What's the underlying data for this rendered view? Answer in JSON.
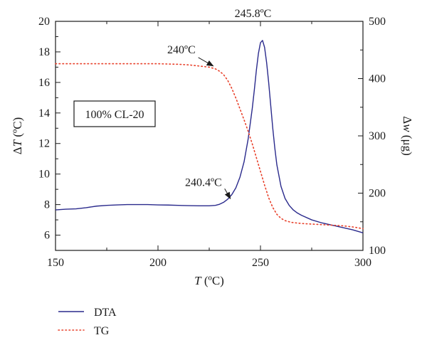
{
  "chart_data": {
    "type": "line",
    "xlabel": {
      "italic": "T",
      "rest": " (ºC)"
    },
    "ylabel_left": {
      "prefix": "Δ",
      "italic": "T",
      "rest": " (ºC)"
    },
    "ylabel_right": {
      "prefix": "Δ",
      "italic": "w",
      "rest": " (μg)"
    },
    "xlim": [
      150,
      300
    ],
    "ylim_left": [
      5,
      20
    ],
    "ylim_right": [
      100,
      500
    ],
    "xticks": [
      150,
      200,
      250,
      300
    ],
    "yticks_left": [
      6,
      8,
      10,
      12,
      14,
      16,
      18,
      20
    ],
    "yticks_right": [
      100,
      200,
      300,
      400,
      500
    ],
    "grid": false,
    "legend_position": "bottom-left, below plot",
    "series": [
      {
        "name": "DTA",
        "axis": "left",
        "color": "#2a2a8c",
        "style": "solid",
        "x": [
          150,
          155,
          160,
          165,
          170,
          175,
          180,
          185,
          190,
          195,
          200,
          205,
          210,
          215,
          220,
          225,
          228,
          230,
          232,
          234,
          236,
          238,
          240,
          242,
          244,
          246,
          247,
          248,
          249,
          250,
          251,
          252,
          253,
          254,
          255,
          256,
          257,
          258,
          260,
          262,
          264,
          266,
          268,
          270,
          275,
          280,
          285,
          290,
          295,
          300
        ],
        "values": [
          7.65,
          7.7,
          7.72,
          7.8,
          7.9,
          7.95,
          7.98,
          8.0,
          8.0,
          8.0,
          7.98,
          7.97,
          7.95,
          7.93,
          7.92,
          7.92,
          7.95,
          8.02,
          8.15,
          8.35,
          8.65,
          9.1,
          9.8,
          10.8,
          12.3,
          14.3,
          15.5,
          16.8,
          17.9,
          18.6,
          18.75,
          18.3,
          17.3,
          16.0,
          14.5,
          13.0,
          11.7,
          10.6,
          9.2,
          8.4,
          7.95,
          7.65,
          7.45,
          7.3,
          7.0,
          6.8,
          6.65,
          6.5,
          6.35,
          6.15
        ]
      },
      {
        "name": "TG",
        "axis": "right",
        "color": "#e8402a",
        "style": "dotted",
        "x": [
          150,
          160,
          170,
          180,
          190,
          200,
          210,
          215,
          220,
          225,
          228,
          230,
          232,
          234,
          236,
          238,
          240,
          242,
          244,
          246,
          248,
          250,
          252,
          254,
          256,
          258,
          260,
          262,
          265,
          270,
          275,
          280,
          285,
          290,
          295,
          300
        ],
        "values": [
          426,
          426,
          426,
          426,
          426,
          426,
          425,
          424,
          422,
          420,
          417,
          413,
          407,
          397,
          383,
          366,
          347,
          328,
          308,
          286,
          262,
          238,
          214,
          192,
          175,
          163,
          156,
          152,
          149,
          147,
          146,
          145,
          144,
          143,
          141,
          138
        ]
      }
    ],
    "annotations": [
      {
        "text": "245.8ºC",
        "x": 250.5,
        "y": 18.75,
        "axis": "left",
        "arrow": false
      },
      {
        "text": "240ºC",
        "x": 228,
        "y": 417,
        "axis": "right",
        "arrow": true
      },
      {
        "text": "240.4ºC",
        "x": 236,
        "y": 8.2,
        "axis": "left",
        "arrow": true
      }
    ],
    "text_box": "100% CL-20"
  }
}
